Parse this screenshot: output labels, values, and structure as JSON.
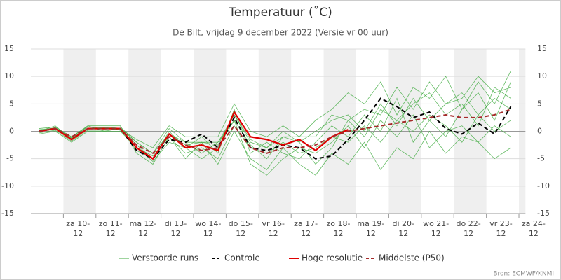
{
  "chart_data": {
    "type": "line",
    "title": "Temperatuur (˚C)",
    "subtitle": "De Bilt, vrijdag 9 december 2022 (Versie vr 00 uur)",
    "source": "Bron: ECMWF/KNMI",
    "x": [
      0.25,
      0.75,
      1.25,
      1.75,
      2.25,
      2.75,
      3.25,
      3.75,
      4.25,
      4.75,
      5.25,
      5.75,
      6.25,
      6.75,
      7.25,
      7.75,
      8.25,
      8.75,
      9.25,
      9.75,
      10.25,
      10.75,
      11.25,
      11.75,
      12.25,
      12.75,
      13.25,
      13.75,
      14.25,
      14.75
    ],
    "xlim": [
      0,
      15.2
    ],
    "xticks": [
      {
        "value": 1,
        "label": "za 10-12"
      },
      {
        "value": 2,
        "label": "zo 11-12"
      },
      {
        "value": 3,
        "label": "ma 12-12"
      },
      {
        "value": 4,
        "label": "di 13-12"
      },
      {
        "value": 5,
        "label": "wo 14-12"
      },
      {
        "value": 6,
        "label": "do 15-12"
      },
      {
        "value": 7,
        "label": "vr 16-12"
      },
      {
        "value": 8,
        "label": "za 17-12"
      },
      {
        "value": 9,
        "label": "zo 18-12"
      },
      {
        "value": 10,
        "label": "ma 19-12"
      },
      {
        "value": 11,
        "label": "di 20-12"
      },
      {
        "value": 12,
        "label": "wo 21-12"
      },
      {
        "value": 13,
        "label": "do 22-12"
      },
      {
        "value": 14,
        "label": "vr 23-12"
      },
      {
        "value": 15,
        "label": "za 24-12"
      }
    ],
    "ylim": [
      -15,
      15
    ],
    "yticks": [
      -15,
      -10,
      -5,
      0,
      5,
      10,
      15
    ],
    "series": [
      {
        "name": "Verstoorde runs",
        "color": "#3daa3d",
        "values": [
          [
            0.5,
            0.8,
            -1,
            0.8,
            0.5,
            0.8,
            -2,
            -4,
            0.5,
            -2,
            -4,
            -2,
            2,
            -2.5,
            -5,
            -1,
            -2,
            -6,
            -3,
            2,
            -1,
            4,
            2,
            5,
            7,
            3,
            5,
            1,
            8,
            6
          ],
          [
            -0.5,
            0,
            -2,
            0,
            0,
            0,
            -3,
            -5.5,
            -2,
            -3,
            -1,
            -4,
            4,
            -4,
            -2,
            -4,
            -5,
            -2,
            1,
            -1,
            3,
            0,
            6,
            -2,
            2,
            -1,
            4,
            7,
            2,
            9
          ],
          [
            0,
            1,
            -1.5,
            1,
            1,
            1,
            -4,
            -6,
            -1,
            -5,
            -2,
            -6,
            0,
            -5,
            -7,
            -3,
            -6,
            -8,
            -4,
            -6,
            -2,
            -7,
            -3,
            -5,
            0,
            -4,
            -1,
            -2,
            -5,
            -3
          ],
          [
            0,
            0.5,
            -1,
            1,
            0,
            0.5,
            -1.5,
            -3,
            1,
            -1,
            -1,
            -1,
            5,
            0,
            -1,
            1,
            -1,
            2,
            4,
            7,
            5,
            9,
            3,
            8,
            6,
            10,
            4,
            9,
            5,
            11
          ],
          [
            0.3,
            0.6,
            -1.2,
            0.4,
            0.6,
            0.2,
            -3,
            -4.5,
            -1,
            -4,
            -3,
            -5,
            1,
            -3,
            -4,
            -2,
            -4,
            -3,
            -1,
            -2,
            1,
            -2,
            2,
            0,
            3,
            1,
            -2,
            3,
            0,
            2
          ],
          [
            -0.3,
            0.2,
            -1.8,
            0.2,
            0.2,
            0.4,
            -2.5,
            -5,
            -0.5,
            -2.5,
            -2,
            -2.5,
            3,
            -1.5,
            -3,
            0,
            -2,
            0,
            2,
            3,
            0,
            5,
            1,
            6,
            2,
            5,
            7,
            3,
            6,
            4
          ],
          [
            0.2,
            0.4,
            -1.4,
            0.6,
            0.4,
            0.6,
            -3.5,
            -5,
            0,
            -3,
            -5,
            -3,
            2,
            -6,
            -8,
            -5,
            -3,
            -4,
            -2,
            1,
            -3,
            2,
            -1,
            3,
            -3,
            0,
            1,
            -2,
            1,
            -1
          ],
          [
            0,
            0.7,
            -1.3,
            0.5,
            0.7,
            0.5,
            -2,
            -4,
            -0.5,
            -2,
            -2,
            -2,
            3,
            -2,
            -3,
            -1,
            -1,
            -1,
            3,
            2,
            4,
            3,
            8,
            4,
            9,
            5,
            6,
            10,
            7,
            8
          ]
        ]
      },
      {
        "name": "Controle",
        "color": "#000000",
        "dash": true,
        "values": [
          0,
          0.5,
          -1.5,
          0.5,
          0.5,
          0.5,
          -3.5,
          -5,
          -1.5,
          -2,
          -0.5,
          -3,
          2.5,
          -3,
          -3.5,
          -2.5,
          -3,
          -5,
          -4.5,
          -1.5,
          2,
          6,
          4.5,
          2.5,
          3.5,
          0.5,
          -0.5,
          1.5,
          -0.5,
          4.5
        ]
      },
      {
        "name": "Hoge resolutie",
        "color": "#e00000",
        "values": [
          0,
          0.5,
          -1.5,
          0.5,
          0.5,
          0.5,
          -3,
          -5,
          -0.5,
          -3,
          -2.5,
          -3.5,
          3.5,
          -1,
          -1.5,
          -2.5,
          -1.5,
          -3.5,
          -1,
          0.3,
          null,
          null,
          null,
          null,
          null,
          null,
          null,
          null,
          null,
          null
        ]
      },
      {
        "name": "Middelste (P50)",
        "color": "#a52a2a",
        "dash": true,
        "values": [
          0,
          0.5,
          -1,
          0.5,
          0.5,
          0.5,
          -2.5,
          -4,
          -1,
          -2.5,
          -3.5,
          -3,
          1,
          -3,
          -4,
          -3,
          -3,
          -2.5,
          -1,
          0,
          0.5,
          1,
          1.5,
          2,
          2.5,
          3,
          2.5,
          2.5,
          3,
          4
        ]
      }
    ]
  }
}
